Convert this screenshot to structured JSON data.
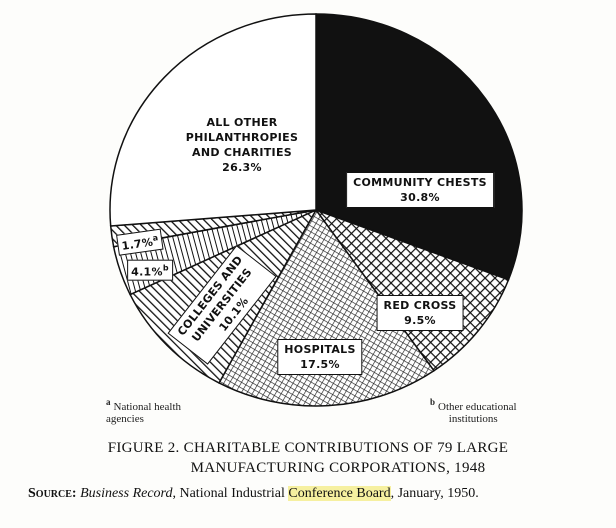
{
  "chart_data": {
    "type": "pie",
    "categories": [
      "COMMUNITY CHESTS",
      "RED CROSS",
      "HOSPITALS",
      "COLLEGES AND\nUNIVERSITIES",
      "b",
      "a",
      "ALL OTHER\nPHILANTHROPIES\nAND CHARITIES"
    ],
    "values": [
      30.8,
      9.5,
      17.5,
      10.1,
      4.1,
      1.7,
      26.3
    ],
    "value_labels": [
      "30.8%",
      "9.5%",
      "17.5%",
      "10.1%",
      "4.1%",
      "1.7%",
      "26.3%"
    ],
    "footnotes": [
      {
        "marker": "a",
        "text": "National health\nagencies"
      },
      {
        "marker": "b",
        "text": "Other educational\ninstitutions"
      }
    ]
  },
  "caption": {
    "title": "FIGURE 2. CHARITABLE CONTRIBUTIONS OF 79 LARGE",
    "title_line2": "MANUFACTURING CORPORATIONS, 1948"
  },
  "source": {
    "label": "Source:",
    "publication": "Business Record",
    "text": ", National Industrial ",
    "highlight": "Conference Board",
    "tail": ", January, 1950."
  }
}
